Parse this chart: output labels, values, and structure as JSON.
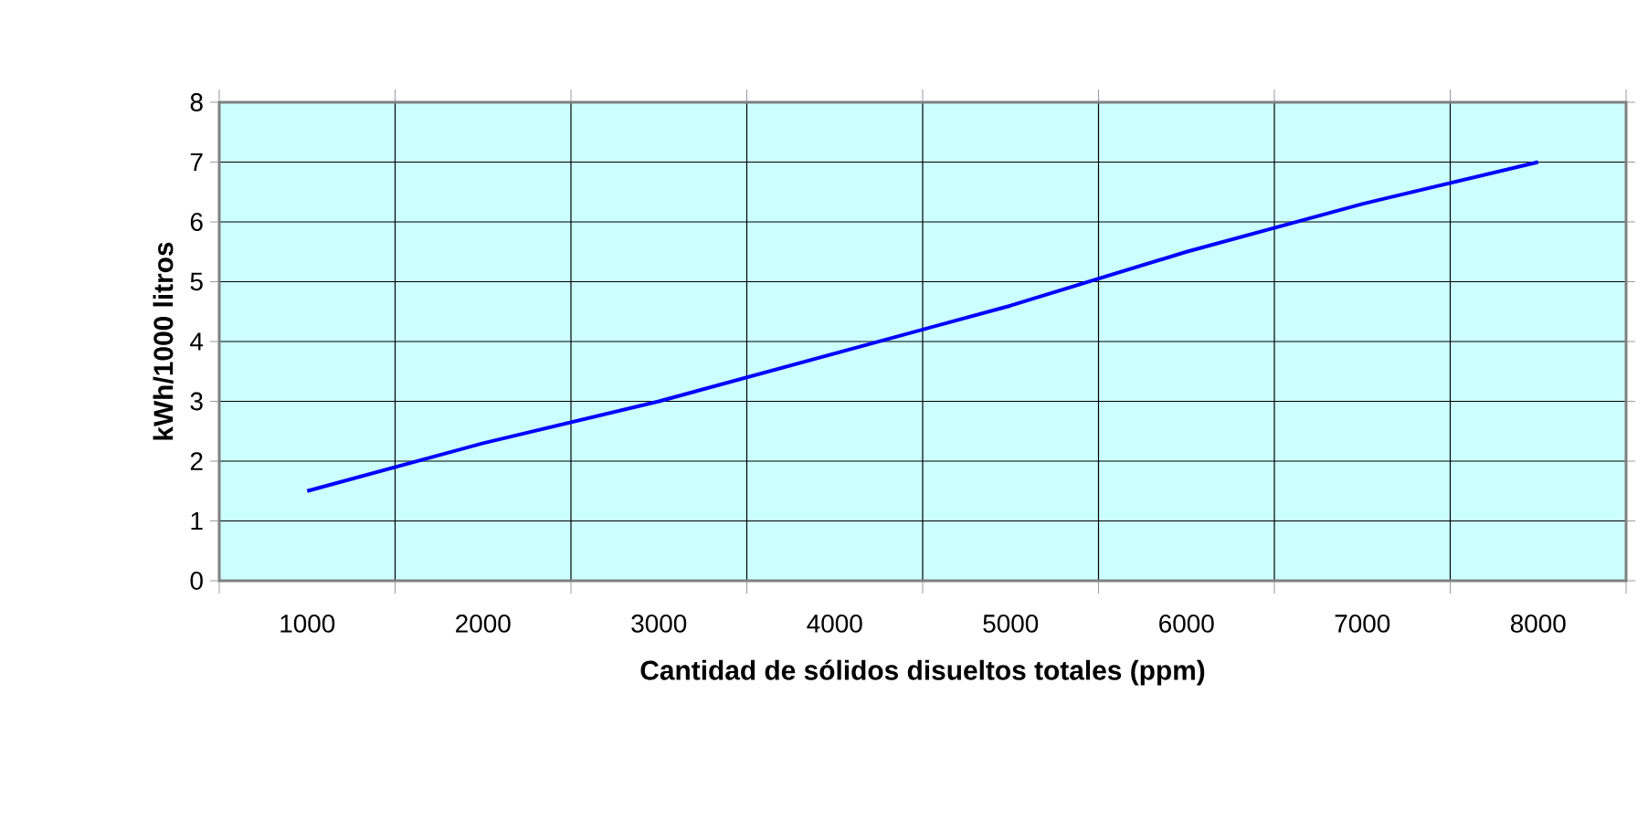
{
  "chart_data": {
    "type": "line",
    "xlabel": "Cantidad de sólidos disueltos totales (ppm)",
    "ylabel": "kWh/1000 litros",
    "categories": [
      "1000",
      "2000",
      "3000",
      "4000",
      "5000",
      "6000",
      "7000",
      "8000"
    ],
    "series": [
      {
        "color": "#0000ff",
        "values": [
          1.5,
          2.3,
          3.0,
          3.8,
          4.6,
          5.5,
          6.3,
          7.0
        ]
      }
    ],
    "ylim": [
      0,
      8
    ],
    "yticks": [
      0,
      1,
      2,
      3,
      4,
      5,
      6,
      7,
      8
    ],
    "grid": true,
    "marker": "none",
    "line_style": "solid"
  }
}
